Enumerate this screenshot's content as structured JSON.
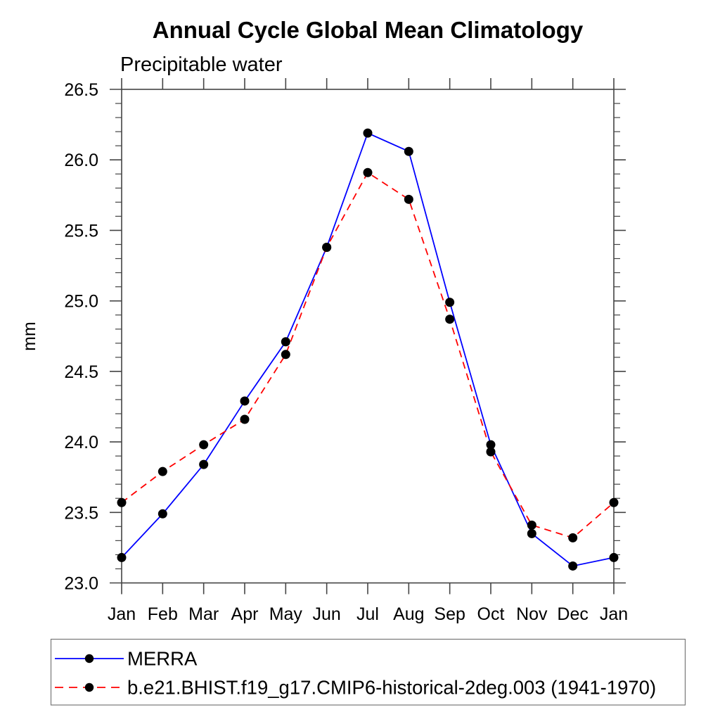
{
  "chart_data": {
    "type": "line",
    "title": "Annual Cycle Global Mean Climatology",
    "subtitle": "Precipitable water",
    "ylabel": "mm",
    "xlabel": "",
    "x_categories": [
      "Jan",
      "Feb",
      "Mar",
      "Apr",
      "May",
      "Jun",
      "Jul",
      "Aug",
      "Sep",
      "Oct",
      "Nov",
      "Dec",
      "Jan"
    ],
    "ylim": [
      23.0,
      26.5
    ],
    "ytick_step": 0.5,
    "ytick_minor_step": 0.1,
    "ytick_labels": [
      "23.0",
      "23.5",
      "24.0",
      "24.5",
      "25.0",
      "25.5",
      "26.0",
      "26.5"
    ],
    "grid": false,
    "frame": "box-with-outward-ticks",
    "legend_position": "bottom-left-box",
    "series": [
      {
        "name": "MERRA",
        "color": "#0000ff",
        "line_style": "solid",
        "marker": "filled-circle",
        "marker_color": "#000000",
        "values": [
          23.18,
          23.49,
          23.84,
          24.29,
          24.71,
          25.38,
          26.19,
          26.06,
          24.99,
          23.98,
          23.35,
          23.12,
          23.18
        ]
      },
      {
        "name": "b.e21.BHIST.f19_g17.CMIP6-historical-2deg.003 (1941-1970)",
        "color": "#ff0000",
        "line_style": "dashed",
        "marker": "filled-circle",
        "marker_color": "#000000",
        "values": [
          23.57,
          23.79,
          23.98,
          24.16,
          24.62,
          25.38,
          25.91,
          25.72,
          24.87,
          23.93,
          23.41,
          23.32,
          23.57
        ]
      }
    ]
  },
  "colors": {
    "background": "#ffffff",
    "axis": "#444444",
    "text": "#000000",
    "legend_border": "#777777",
    "marker": "#000000",
    "merra_line": "#0000ff",
    "model_line": "#ff0000"
  }
}
